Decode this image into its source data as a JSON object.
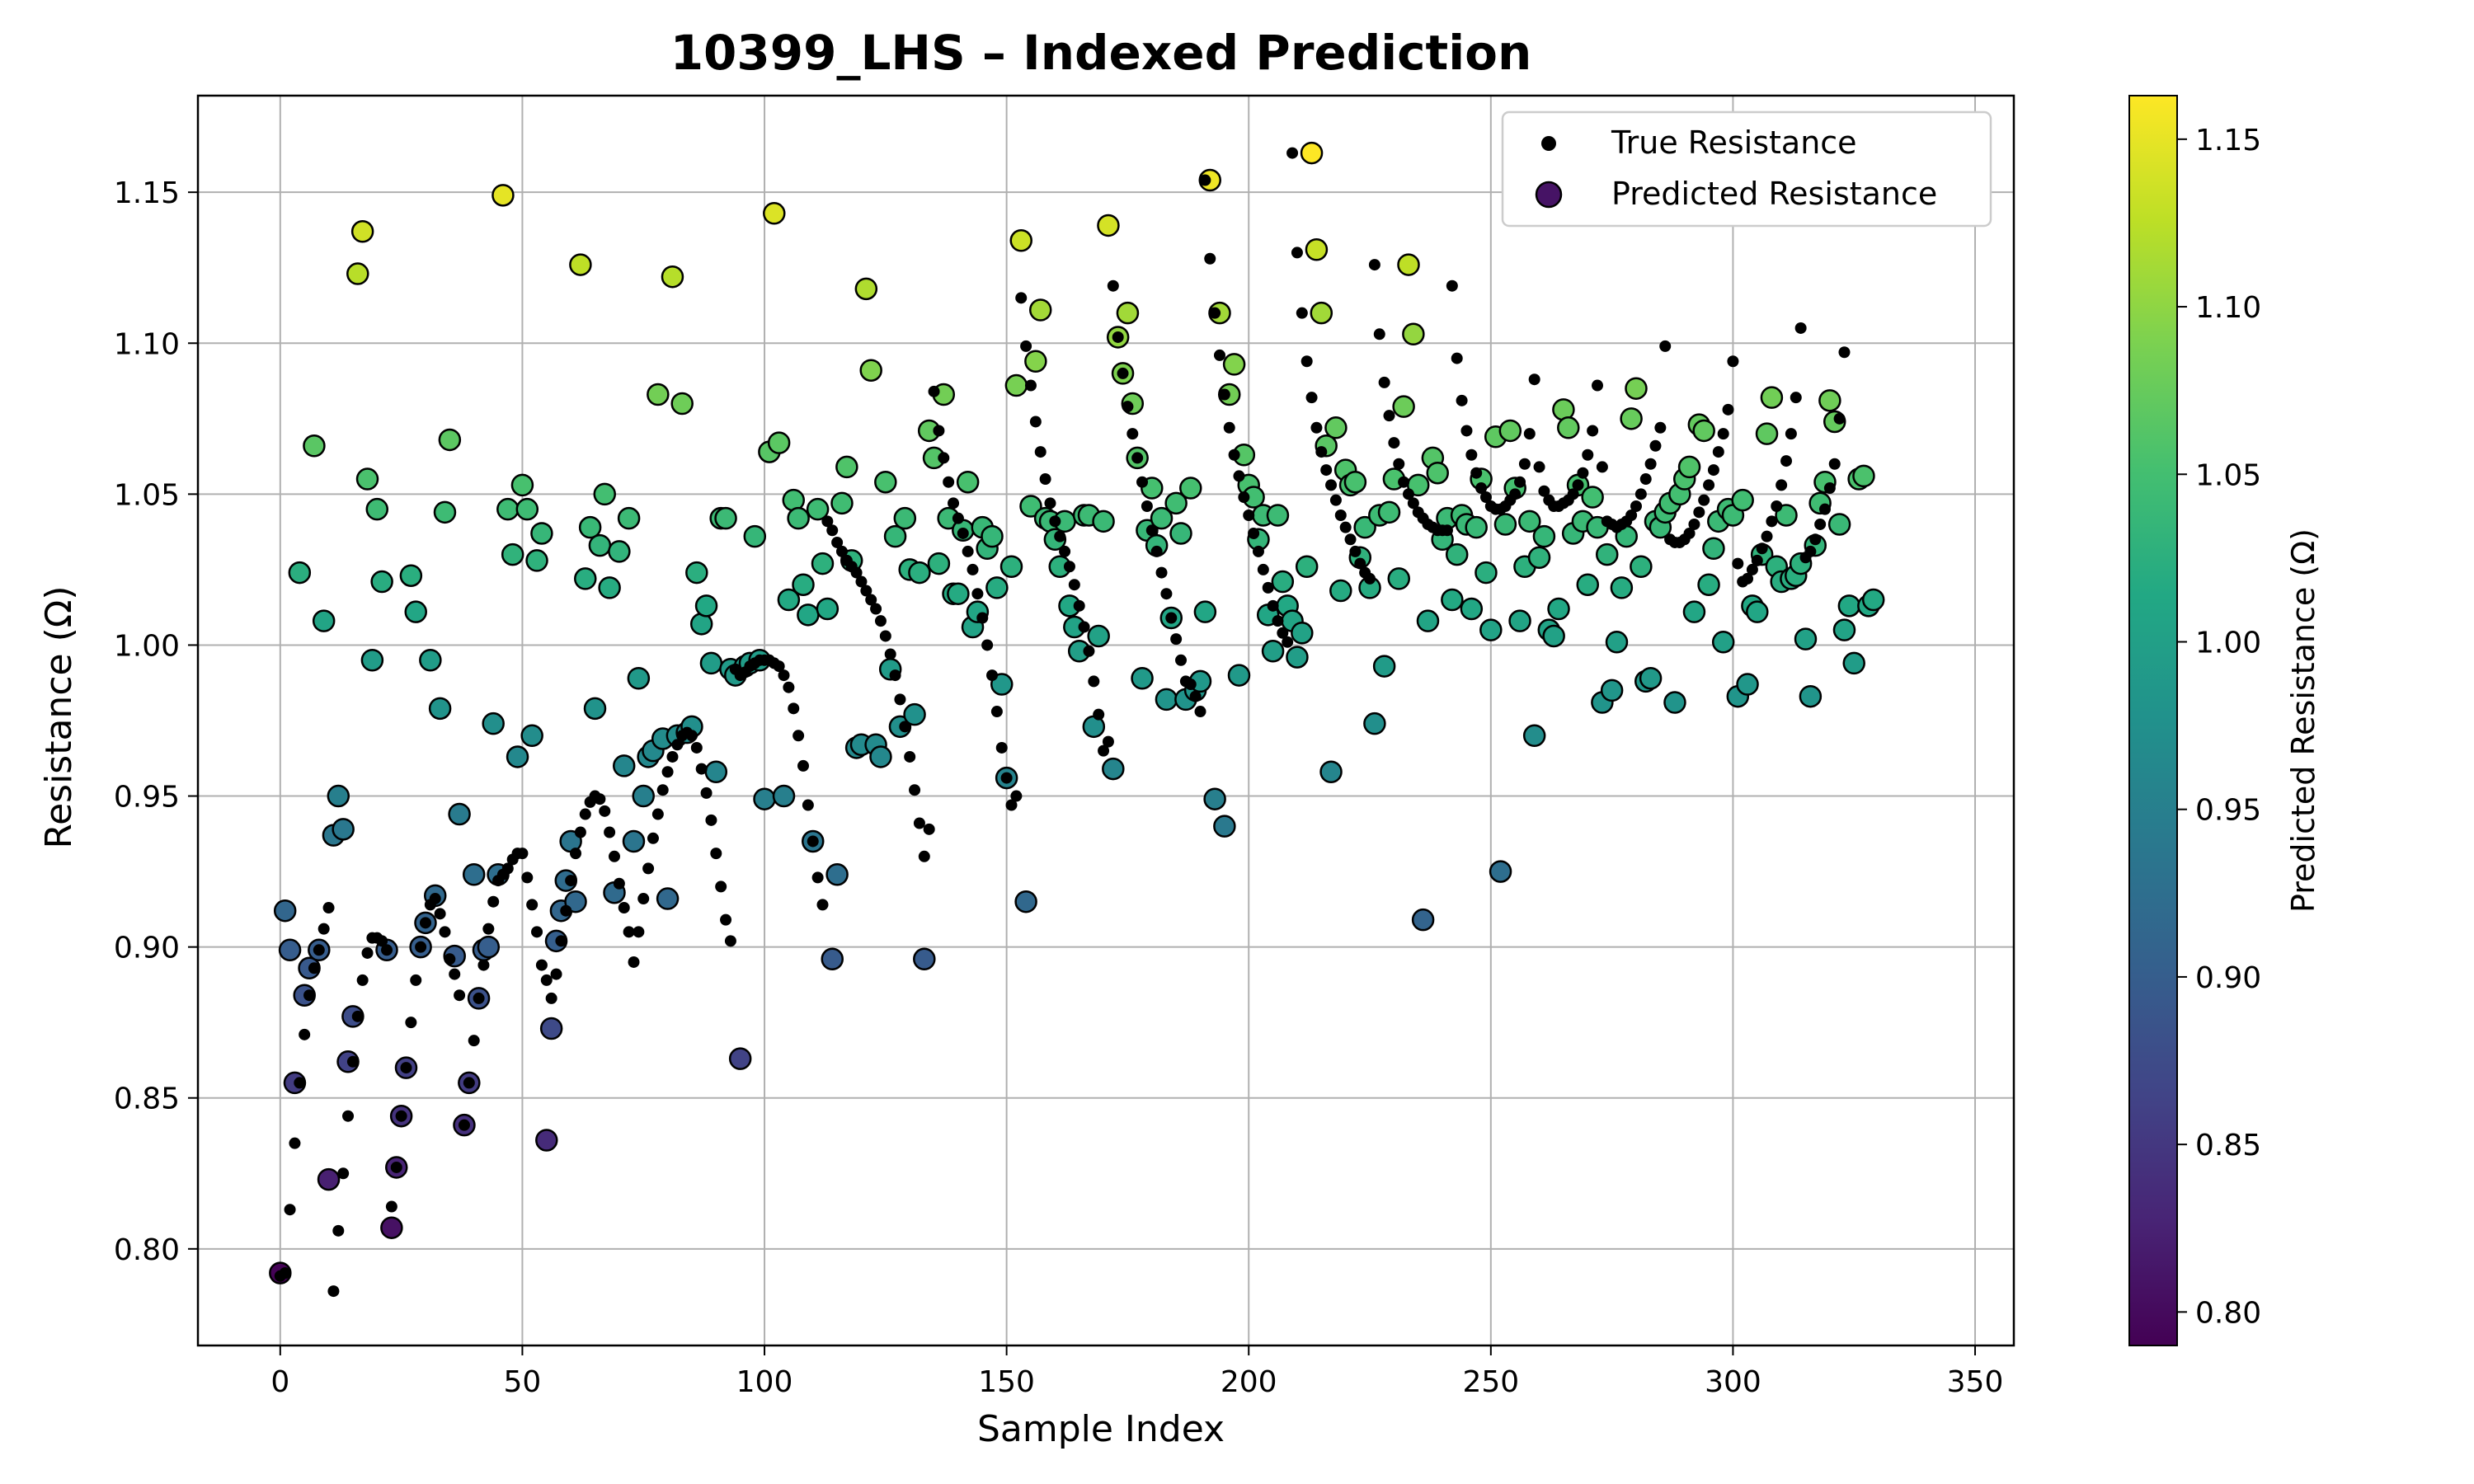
{
  "chart_data": {
    "type": "scatter",
    "title": "10399_LHS – Indexed Prediction",
    "xlabel": "Sample Index",
    "ylabel": "Resistance (Ω)",
    "xlim": [
      -17,
      358
    ],
    "ylim": [
      0.768,
      1.182
    ],
    "xticks": [
      0,
      50,
      100,
      150,
      200,
      250,
      300,
      350
    ],
    "yticks": [
      0.8,
      0.85,
      0.9,
      0.95,
      1.0,
      1.05,
      1.1,
      1.15
    ],
    "ytick_labels": [
      "0.80",
      "0.85",
      "0.90",
      "0.95",
      "1.00",
      "1.05",
      "1.10",
      "1.15"
    ],
    "grid": true,
    "legend_position": "top-right",
    "colorbar": {
      "label": "Predicted Resistance (Ω)",
      "colormap": "viridis",
      "range": [
        0.79,
        1.163
      ],
      "ticks": [
        0.8,
        0.85,
        0.9,
        0.95,
        1.0,
        1.05,
        1.1,
        1.15
      ],
      "tick_labels": [
        "0.80",
        "0.85",
        "0.90",
        "0.95",
        "1.00",
        "1.05",
        "1.10",
        "1.15"
      ]
    },
    "series": [
      {
        "name": "True Resistance",
        "marker": "small black dot",
        "color": "#000000",
        "values": [
          0.791,
          0.792,
          0.813,
          0.835,
          0.855,
          0.871,
          0.884,
          0.893,
          0.899,
          0.906,
          0.913,
          0.786,
          0.806,
          0.825,
          0.844,
          0.862,
          0.877,
          0.889,
          0.898,
          0.903,
          0.903,
          0.902,
          0.899,
          0.814,
          0.827,
          0.844,
          0.86,
          0.875,
          0.889,
          0.9,
          0.908,
          0.914,
          0.916,
          0.911,
          0.905,
          0.896,
          0.891,
          0.884,
          0.841,
          0.855,
          0.869,
          0.883,
          0.894,
          0.906,
          0.915,
          0.922,
          0.924,
          0.926,
          0.929,
          0.931,
          0.931,
          0.923,
          0.914,
          0.905,
          0.894,
          0.889,
          0.883,
          0.891,
          0.902,
          0.912,
          0.922,
          0.931,
          0.938,
          0.944,
          0.948,
          0.95,
          0.949,
          0.945,
          0.938,
          0.93,
          0.921,
          0.913,
          0.905,
          0.895,
          0.905,
          0.916,
          0.926,
          0.936,
          0.944,
          0.952,
          0.958,
          0.963,
          0.967,
          0.97,
          0.971,
          0.97,
          0.966,
          0.959,
          0.951,
          0.942,
          0.931,
          0.92,
          0.909,
          0.902,
          0.992,
          0.99,
          0.991,
          0.993,
          0.994,
          0.995,
          0.995,
          0.995,
          0.994,
          0.993,
          0.99,
          0.986,
          0.979,
          0.97,
          0.96,
          0.947,
          0.935,
          0.923,
          0.914,
          1.041,
          1.038,
          1.034,
          1.031,
          1.028,
          1.026,
          1.024,
          1.021,
          1.018,
          1.015,
          1.012,
          1.008,
          1.003,
          0.997,
          0.99,
          0.982,
          0.973,
          0.963,
          0.952,
          0.941,
          0.93,
          0.939,
          1.084,
          1.071,
          1.062,
          1.054,
          1.047,
          1.042,
          1.037,
          1.031,
          1.025,
          1.017,
          1.009,
          1.0,
          0.99,
          0.978,
          0.966,
          0.956,
          0.947,
          0.95,
          1.115,
          1.099,
          1.086,
          1.074,
          1.064,
          1.055,
          1.047,
          1.041,
          1.036,
          1.031,
          1.026,
          1.02,
          1.013,
          1.006,
          0.998,
          0.988,
          0.977,
          0.965,
          0.968,
          1.119,
          1.102,
          1.09,
          1.079,
          1.07,
          1.062,
          1.054,
          1.046,
          1.038,
          1.031,
          1.024,
          1.017,
          1.009,
          1.002,
          0.995,
          0.988,
          0.987,
          0.983,
          0.978,
          1.154,
          1.128,
          1.11,
          1.096,
          1.083,
          1.072,
          1.063,
          1.056,
          1.049,
          1.043,
          1.037,
          1.031,
          1.025,
          1.019,
          1.013,
          1.008,
          1.004,
          1.001,
          1.163,
          1.13,
          1.11,
          1.094,
          1.082,
          1.072,
          1.064,
          1.058,
          1.053,
          1.048,
          1.043,
          1.039,
          1.035,
          1.031,
          1.027,
          1.024,
          1.022,
          1.126,
          1.103,
          1.087,
          1.076,
          1.067,
          1.06,
          1.054,
          1.05,
          1.047,
          1.044,
          1.042,
          1.04,
          1.039,
          1.038,
          1.038,
          1.038,
          1.119,
          1.095,
          1.081,
          1.071,
          1.063,
          1.057,
          1.052,
          1.049,
          1.046,
          1.045,
          1.045,
          1.046,
          1.048,
          1.05,
          1.054,
          1.06,
          1.07,
          1.088,
          1.059,
          1.051,
          1.048,
          1.046,
          1.046,
          1.047,
          1.048,
          1.05,
          1.053,
          1.057,
          1.063,
          1.071,
          1.086,
          1.059,
          1.041,
          1.04,
          1.039,
          1.04,
          1.041,
          1.043,
          1.046,
          1.05,
          1.055,
          1.06,
          1.066,
          1.072,
          1.099,
          1.035,
          1.034,
          1.034,
          1.035,
          1.037,
          1.04,
          1.044,
          1.048,
          1.053,
          1.058,
          1.064,
          1.07,
          1.078,
          1.094,
          1.027,
          1.021,
          1.022,
          1.025,
          1.028,
          1.032,
          1.036,
          1.041,
          1.046,
          1.053,
          1.061,
          1.07,
          1.082,
          1.105,
          1.029,
          1.031,
          1.035,
          1.04,
          1.045,
          1.052,
          1.06,
          1.075,
          1.097
        ]
      },
      {
        "name": "Predicted Resistance",
        "marker": "circle colored by value",
        "values": [
          0.792,
          0.912,
          0.899,
          0.855,
          1.024,
          0.884,
          0.893,
          1.066,
          0.899,
          1.008,
          0.823,
          0.937,
          0.95,
          0.939,
          0.862,
          0.877,
          1.123,
          1.137,
          1.055,
          0.995,
          1.045,
          1.021,
          0.899,
          0.807,
          0.827,
          0.844,
          0.86,
          1.023,
          1.011,
          0.9,
          0.908,
          0.995,
          0.917,
          0.979,
          1.044,
          1.068,
          0.897,
          0.944,
          0.841,
          0.855,
          0.924,
          0.883,
          0.899,
          0.9,
          0.974,
          0.924,
          1.149,
          1.045,
          1.03,
          0.963,
          1.053,
          1.045,
          0.97,
          1.028,
          1.037,
          0.836,
          0.873,
          0.902,
          0.912,
          0.922,
          0.935,
          0.915,
          1.126,
          1.022,
          1.039,
          0.979,
          1.033,
          1.05,
          1.019,
          0.918,
          1.031,
          0.96,
          1.042,
          0.935,
          0.989,
          0.95,
          0.963,
          0.965,
          1.083,
          0.969,
          0.916,
          1.122,
          0.97,
          1.08,
          0.971,
          0.973,
          1.024,
          1.007,
          1.013,
          0.994,
          0.958,
          1.042,
          1.042,
          0.992,
          0.99,
          0.863,
          0.993,
          0.994,
          1.036,
          0.995,
          0.949,
          1.064,
          1.143,
          1.067,
          0.95,
          1.015,
          1.048,
          1.042,
          1.02,
          1.01,
          0.935,
          1.045,
          1.027,
          1.012,
          0.896,
          0.924,
          1.047,
          1.059,
          1.028,
          0.966,
          0.967,
          1.118,
          1.091,
          0.967,
          0.963,
          1.054,
          0.992,
          1.036,
          0.973,
          1.042,
          1.025,
          0.977,
          1.024,
          0.896,
          1.071,
          1.062,
          1.027,
          1.083,
          1.042,
          1.017,
          1.017,
          1.038,
          1.054,
          1.006,
          1.011,
          1.039,
          1.032,
          1.036,
          1.019,
          0.987,
          0.956,
          1.026,
          1.086,
          1.134,
          0.915,
          1.046,
          1.094,
          1.111,
          1.042,
          1.041,
          1.035,
          1.026,
          1.041,
          1.013,
          1.006,
          0.998,
          1.043,
          1.043,
          0.973,
          1.003,
          1.041,
          1.139,
          0.959,
          1.102,
          1.09,
          1.11,
          1.08,
          1.062,
          0.989,
          1.038,
          1.052,
          1.033,
          1.042,
          0.982,
          1.009,
          1.047,
          1.037,
          0.982,
          1.052,
          0.985,
          0.988,
          1.011,
          1.154,
          0.949,
          1.11,
          0.94,
          1.083,
          1.093,
          0.99,
          1.063,
          1.053,
          1.049,
          1.035,
          1.043,
          1.01,
          0.998,
          1.043,
          1.021,
          1.013,
          1.008,
          0.996,
          1.004,
          1.026,
          1.163,
          1.131,
          1.11,
          1.066,
          0.958,
          1.072,
          1.018,
          1.058,
          1.053,
          1.054,
          1.029,
          1.039,
          1.019,
          0.974,
          1.043,
          0.993,
          1.044,
          1.055,
          1.022,
          1.079,
          1.126,
          1.103,
          1.053,
          0.909,
          1.008,
          1.062,
          1.057,
          1.035,
          1.042,
          1.015,
          1.03,
          1.043,
          1.04,
          1.012,
          1.039,
          1.055,
          1.024,
          1.005,
          1.069,
          0.925,
          1.04,
          1.071,
          1.052,
          1.008,
          1.026,
          1.041,
          0.97,
          1.029,
          1.036,
          1.005,
          1.003,
          1.012,
          1.078,
          1.072,
          1.037,
          1.053,
          1.041,
          1.02,
          1.049,
          1.039,
          0.981,
          1.03,
          0.985,
          1.001,
          1.019,
          1.036,
          1.075,
          1.085,
          1.026,
          0.988,
          0.989,
          1.041,
          1.039,
          1.044,
          1.047,
          0.981,
          1.05,
          1.055,
          1.059,
          1.011,
          1.073,
          1.071,
          1.02,
          1.032,
          1.041,
          1.001,
          1.045,
          1.043,
          0.983,
          1.048,
          0.987,
          1.013,
          1.011,
          1.03,
          1.07,
          1.082,
          1.026,
          1.021,
          1.043,
          1.022,
          1.023,
          1.027,
          1.002,
          0.983,
          1.033,
          1.047,
          1.054,
          1.081,
          1.074,
          1.04,
          1.005,
          1.013,
          0.994,
          1.055,
          1.056,
          1.013,
          1.015
        ]
      }
    ]
  }
}
